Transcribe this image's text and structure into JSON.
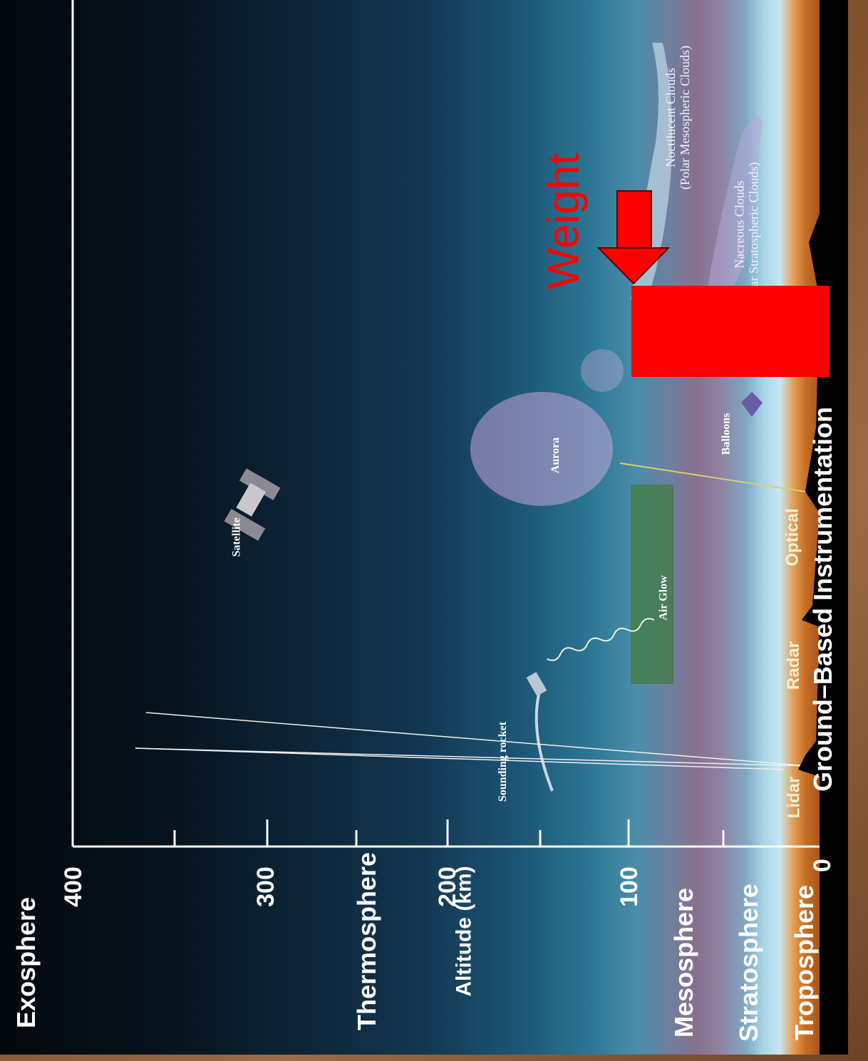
{
  "layers": {
    "exosphere": "Exosphere",
    "thermosphere": "Thermosphere",
    "mesosphere": "Mesosphere",
    "stratosphere": "Stratosphere",
    "troposphere": "Troposphere"
  },
  "axis": {
    "label": "Altitude (km)",
    "ticks": [
      "400",
      "300",
      "200",
      "100",
      "0"
    ]
  },
  "features": {
    "satellite": "Satellite",
    "sounding_rocket": "Sounding rocket",
    "air_glow": "Air Glow",
    "aurora": "Aurora",
    "balloons": "Balloons",
    "noctilucent_line1": "Noctilucent Clouds",
    "noctilucent_line2": "(Polar Mesospheric Clouds)",
    "nacreous_line1": "Nacreous Clouds",
    "nacreous_line2": "ar Stratospheric Clouds)"
  },
  "instruments": {
    "lidar": "Lidar",
    "radar": "Radar",
    "optical": "Optical",
    "title": "Ground–Based Instrumentation"
  },
  "overlay": {
    "weight_label": "Weight",
    "arrow_color": "#ff0000",
    "block_color": "#ff0000"
  }
}
